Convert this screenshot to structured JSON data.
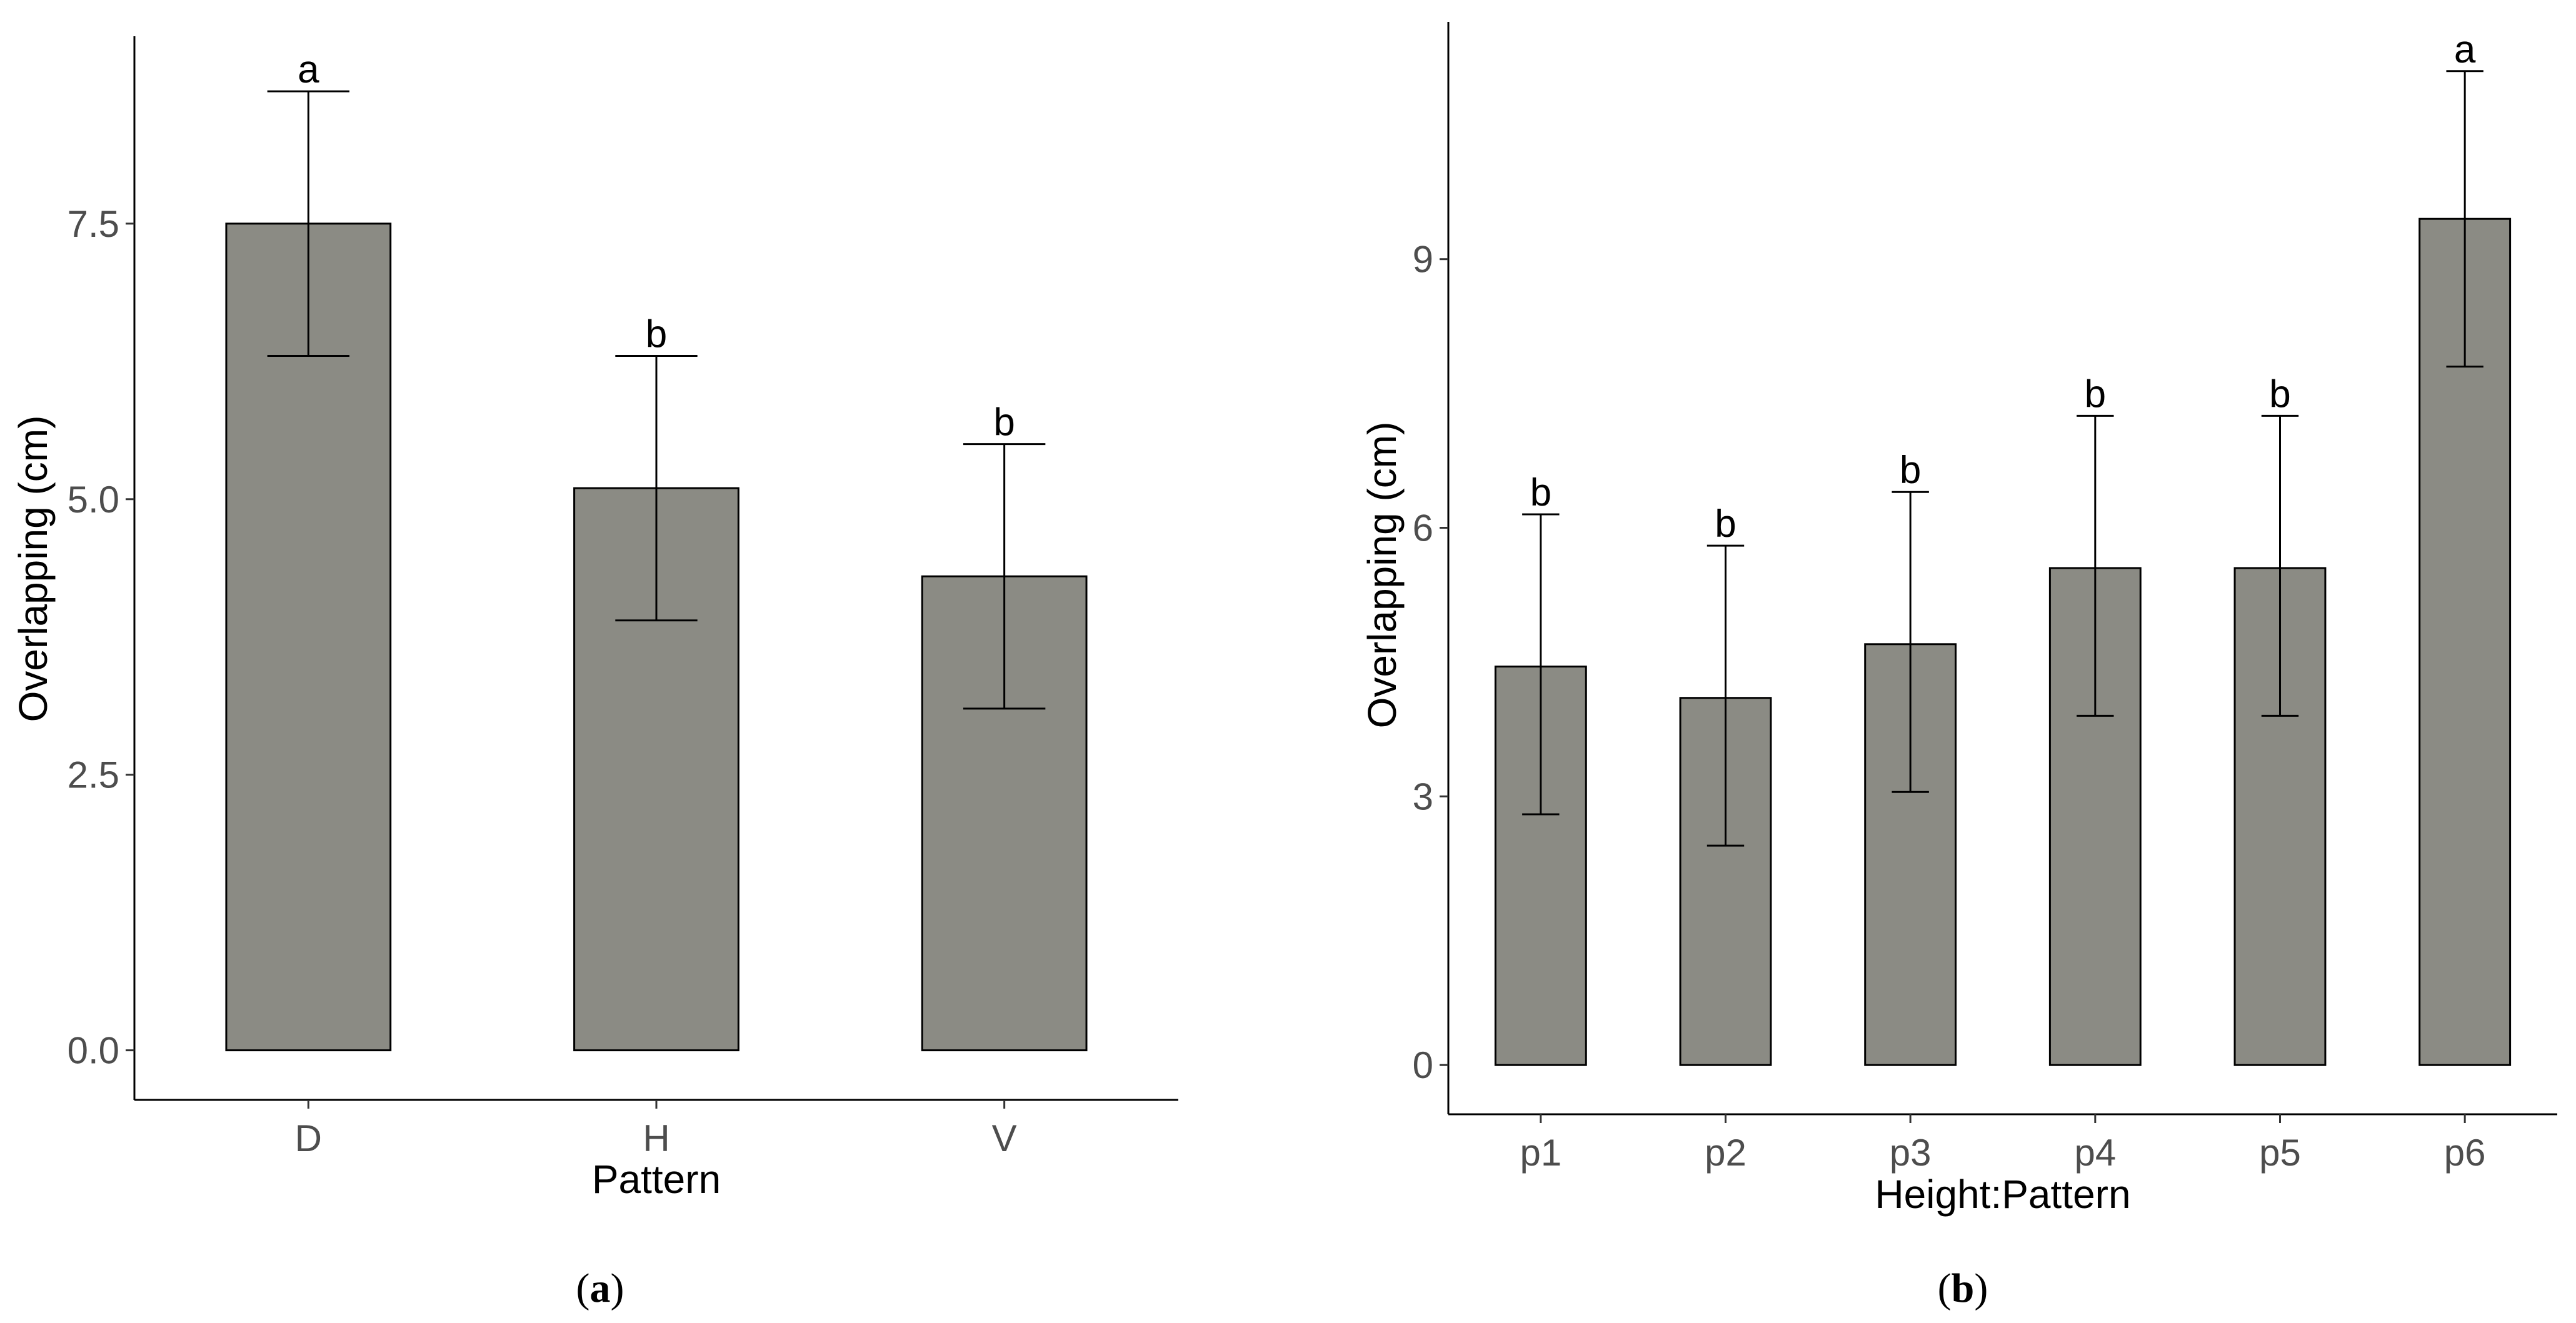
{
  "chart_data": [
    {
      "type": "bar",
      "panel_label": "a",
      "title": "",
      "xlabel": "Pattern",
      "ylabel": "Overlapping (cm)",
      "categories": [
        "D",
        "H",
        "V"
      ],
      "values": [
        7.5,
        5.1,
        4.3
      ],
      "error_low": [
        6.3,
        3.9,
        3.1
      ],
      "error_high": [
        8.7,
        6.3,
        5.5
      ],
      "significance": [
        "a",
        "b",
        "b"
      ],
      "ylim": [
        -0.45,
        9.2
      ],
      "yticks": [
        0.0,
        2.5,
        5.0,
        7.5
      ],
      "ytick_labels": [
        "0.0",
        "2.5",
        "5.0",
        "7.5"
      ],
      "bar_color": "#8b8b84",
      "grid": false
    },
    {
      "type": "bar",
      "panel_label": "b",
      "title": "",
      "xlabel": "Height:Pattern",
      "ylabel": "Overlapping (cm)",
      "categories": [
        "p1",
        "p2",
        "p3",
        "p4",
        "p5",
        "p6"
      ],
      "values": [
        4.45,
        4.1,
        4.7,
        5.55,
        5.55,
        9.45
      ],
      "error_low": [
        2.8,
        2.45,
        3.05,
        3.9,
        3.9,
        7.8
      ],
      "error_high": [
        6.15,
        5.8,
        6.4,
        7.25,
        7.25,
        11.1
      ],
      "significance": [
        "b",
        "b",
        "b",
        "b",
        "b",
        "a"
      ],
      "ylim": [
        -0.55,
        11.65
      ],
      "yticks": [
        0,
        3,
        6,
        9
      ],
      "ytick_labels": [
        "0",
        "3",
        "6",
        "9"
      ],
      "bar_color": "#8b8b84",
      "grid": false
    }
  ],
  "captions": {
    "a": {
      "open": "(",
      "letter": "a",
      "close": ")"
    },
    "b": {
      "open": "(",
      "letter": "b",
      "close": ")"
    }
  }
}
